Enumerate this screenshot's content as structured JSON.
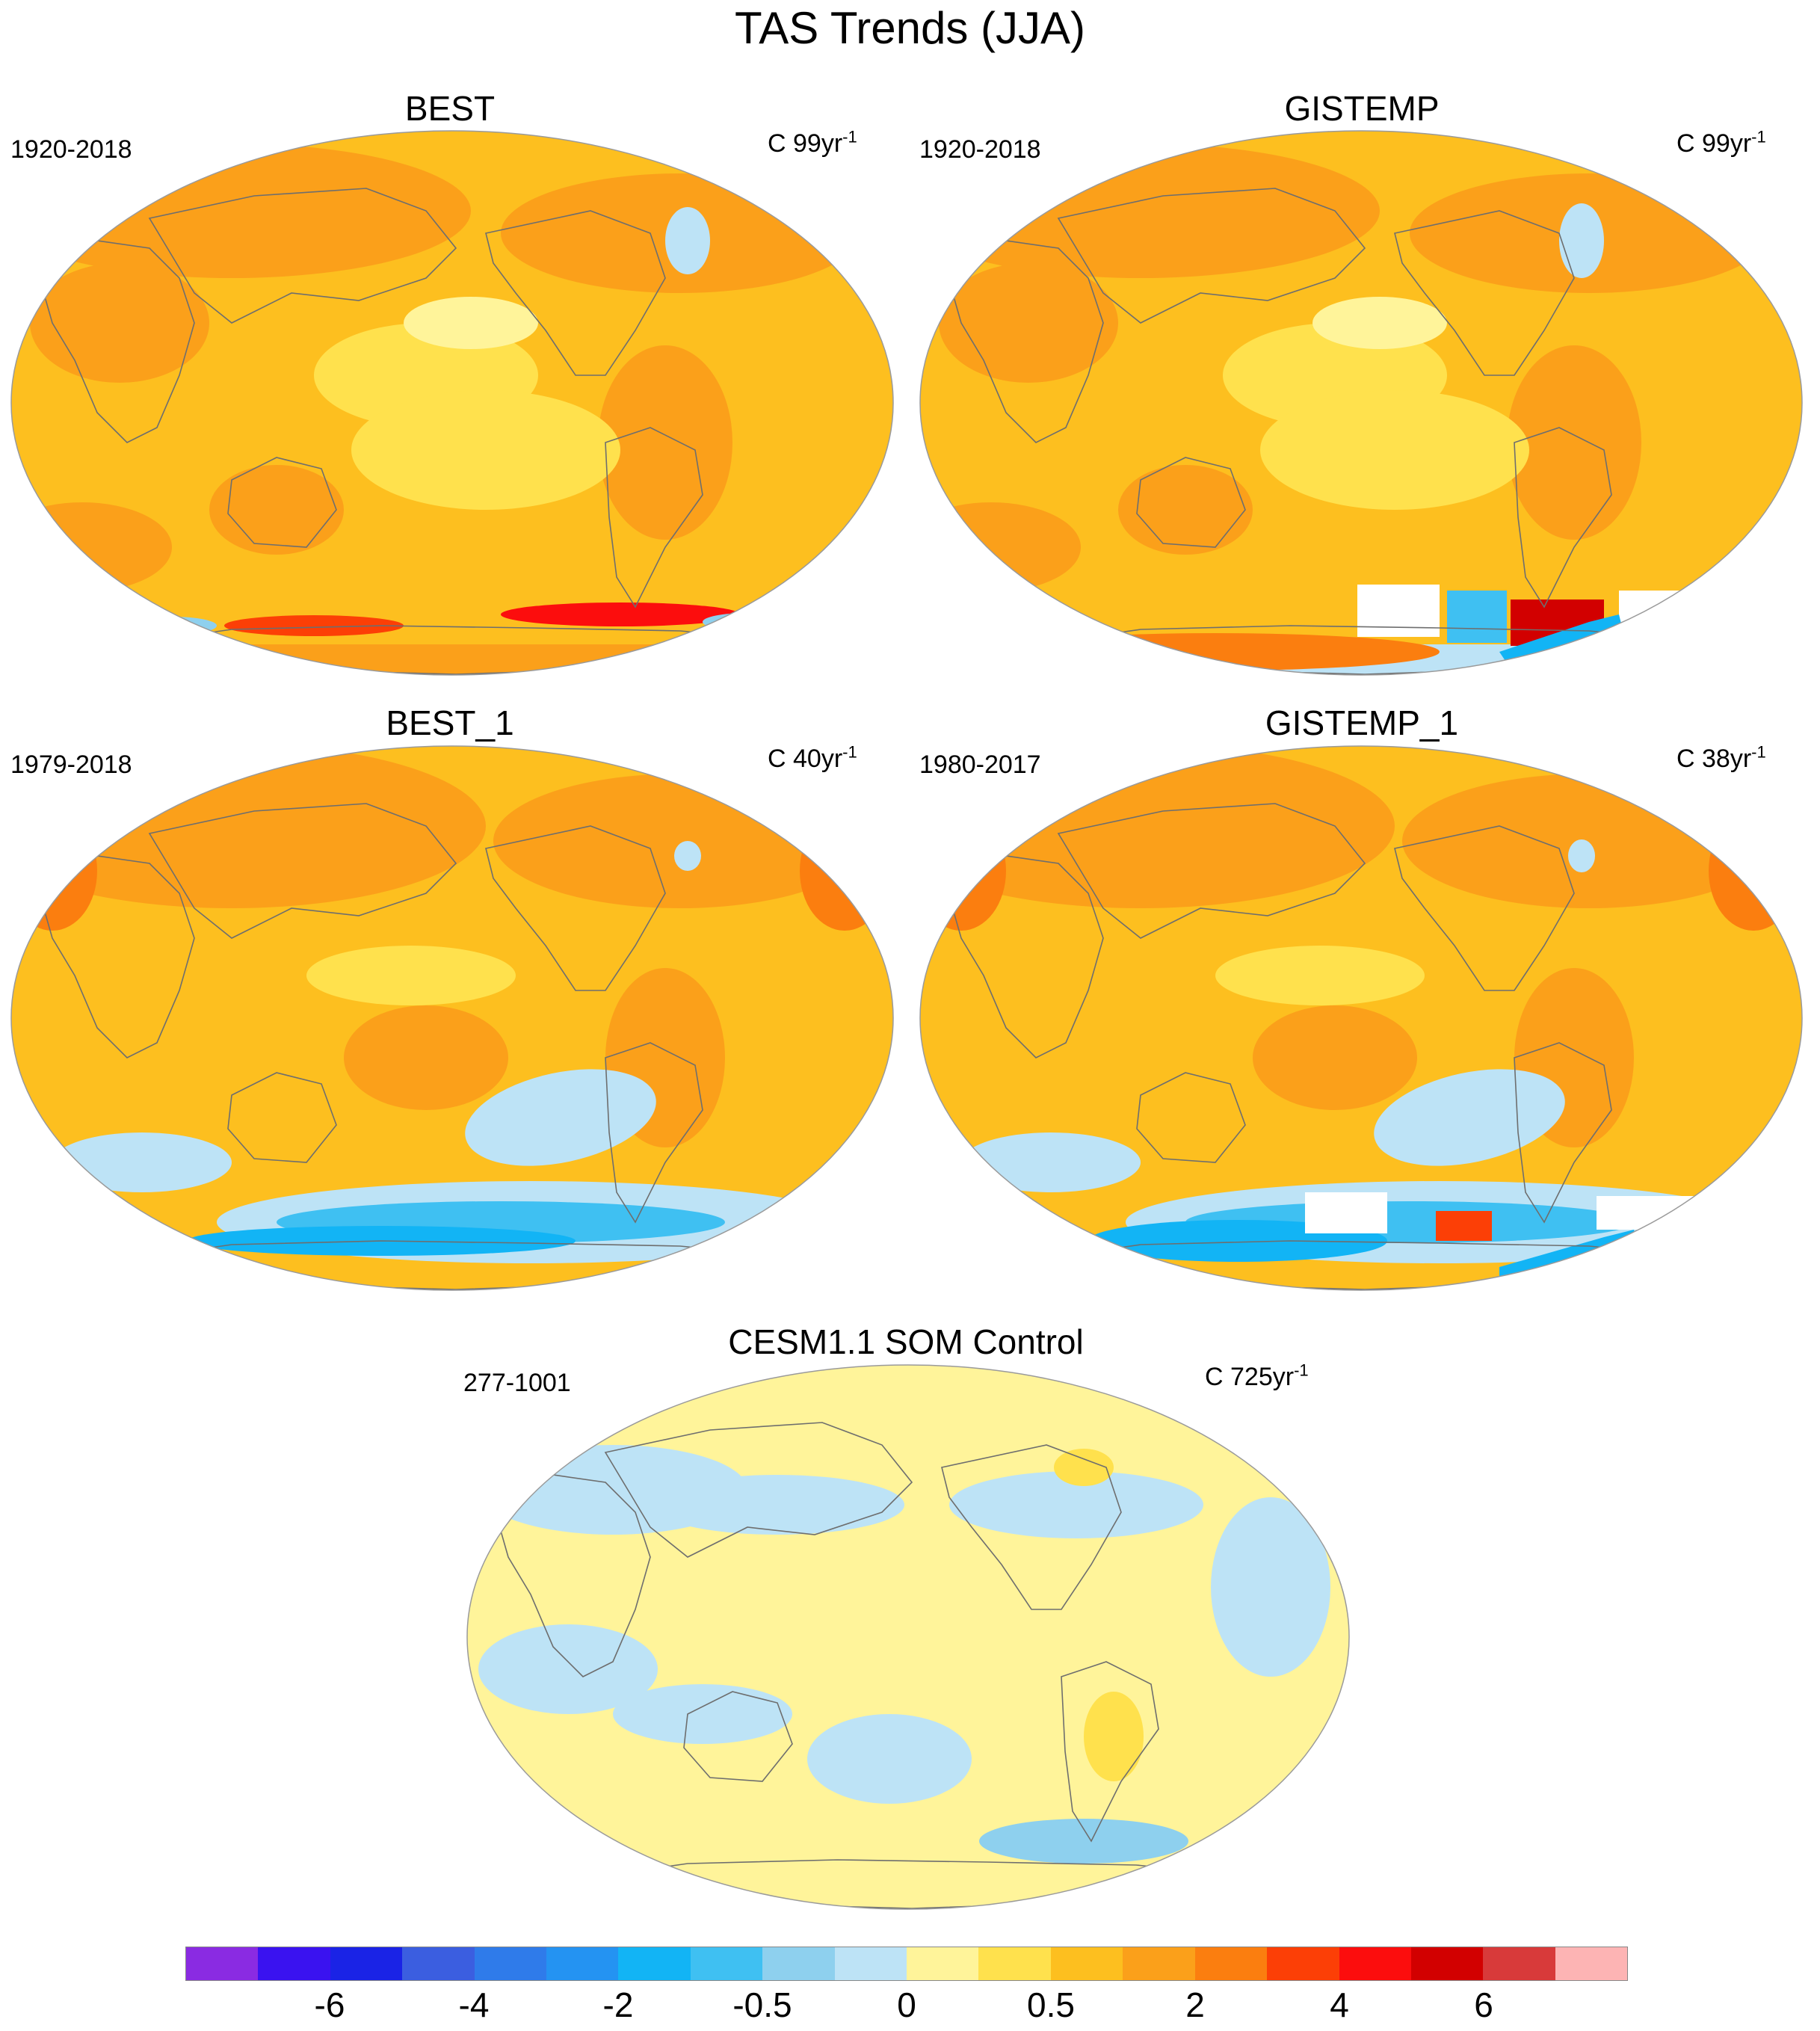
{
  "title": "TAS Trends (JJA)",
  "panels": [
    {
      "id": "best",
      "title": "BEST",
      "period": "1920-2018",
      "units_prefix": "C",
      "units_value": "99yr",
      "units_exp": "-1",
      "theme": "warm"
    },
    {
      "id": "gistemp",
      "title": "GISTEMP",
      "period": "1920-2018",
      "units_prefix": "C",
      "units_value": "99yr",
      "units_exp": "-1",
      "theme": "warm_gaps"
    },
    {
      "id": "best_1",
      "title": "BEST_1",
      "period": "1979-2018",
      "units_prefix": "C",
      "units_value": "40yr",
      "units_exp": "-1",
      "theme": "recent"
    },
    {
      "id": "gistemp_1",
      "title": "GISTEMP_1",
      "period": "1980-2017",
      "units_prefix": "C",
      "units_value": "38yr",
      "units_exp": "-1",
      "theme": "recent_gaps"
    },
    {
      "id": "cesm",
      "title": "CESM1.1 SOM Control",
      "period": "277-1001",
      "units_prefix": "C",
      "units_value": "725yr",
      "units_exp": "-1",
      "theme": "control"
    }
  ],
  "colorbar": {
    "colors": [
      "#8a2be2",
      "#3a12f0",
      "#1a23e6",
      "#3b5ee0",
      "#2f7bea",
      "#2493f2",
      "#12b4f5",
      "#3fc0f2",
      "#8ed0ee",
      "#bde3f6",
      "#fff49a",
      "#ffe14d",
      "#fdbf1f",
      "#fba01a",
      "#fb7e0f",
      "#fc3f06",
      "#fc0d0d",
      "#d20000",
      "#d83a3a",
      "#fdb4b4"
    ],
    "labels": [
      "-6",
      "-4",
      "-2",
      "-0.5",
      "0",
      "0.5",
      "2",
      "4",
      "6"
    ]
  },
  "palette": {
    "land_outline": "#6e6e6e",
    "map_border": "#9a9a9a",
    "missing": "#ffffff"
  }
}
